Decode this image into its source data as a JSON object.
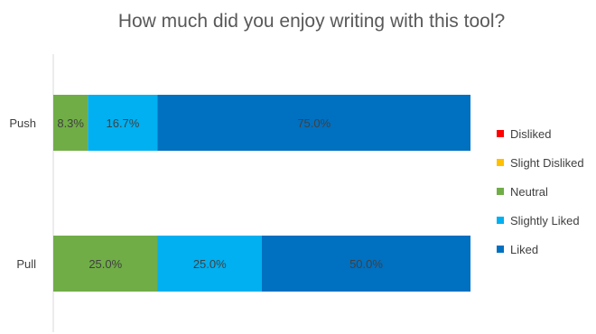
{
  "chart_data": {
    "type": "bar",
    "orientation": "horizontal",
    "stacked": "percent",
    "title": "How much did you enjoy writing with this tool?",
    "categories": [
      "Push",
      "Pull"
    ],
    "series": [
      {
        "name": "Disliked",
        "color": "#FF0000",
        "values": [
          0,
          0
        ]
      },
      {
        "name": "Slight Disliked",
        "color": "#FFC000",
        "values": [
          0,
          0
        ]
      },
      {
        "name": "Neutral",
        "color": "#70AD47",
        "values": [
          8.3,
          25.0
        ]
      },
      {
        "name": "Slightly Liked",
        "color": "#00B0F0",
        "values": [
          16.7,
          25.0
        ]
      },
      {
        "name": "Liked",
        "color": "#0070C0",
        "values": [
          75.0,
          50.0
        ]
      }
    ],
    "data_labels": [
      [
        "8.3%",
        "16.7%",
        "75.0%"
      ],
      [
        "25.0%",
        "25.0%",
        "50.0%"
      ]
    ],
    "xlim": [
      0,
      100
    ],
    "grid": false,
    "legend_position": "right"
  }
}
